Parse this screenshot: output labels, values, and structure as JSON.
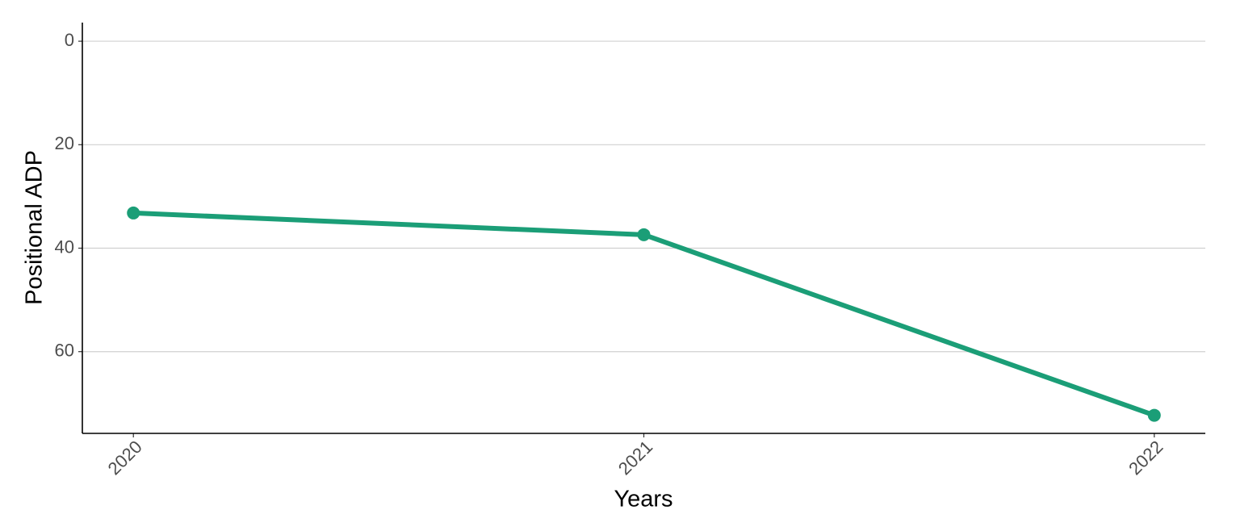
{
  "chart_data": {
    "type": "line",
    "x_label": "Years",
    "y_label": "Positional ADP",
    "x": [
      2020,
      2021,
      2022
    ],
    "series": [
      {
        "color": "#1b9e77",
        "values": [
          33.2,
          37.4,
          72.3
        ]
      }
    ],
    "xlim": [
      2019.9,
      2022.1
    ],
    "xticks": [
      2020,
      2021,
      2022
    ],
    "ylim": [
      -3.6,
      75.8
    ],
    "yticks": [
      0,
      20,
      40,
      60
    ],
    "y_reversed": true,
    "grid": true
  }
}
